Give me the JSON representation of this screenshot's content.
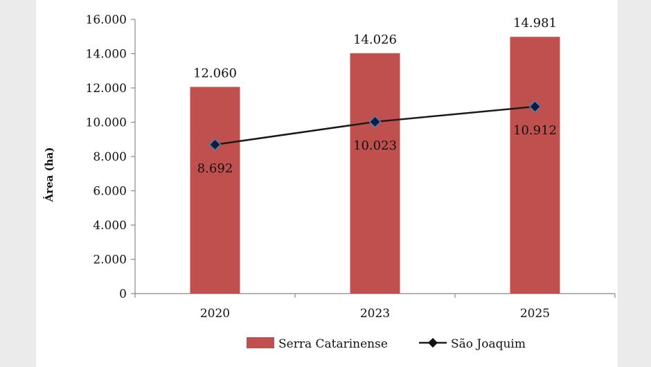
{
  "chart_data": {
    "type": "bar",
    "categories": [
      "2020",
      "2023",
      "2025"
    ],
    "xlabel": "",
    "ylabel": "Área (ha)",
    "ylim": [
      0,
      16000
    ],
    "yticks": [
      0,
      2000,
      4000,
      6000,
      8000,
      10000,
      12000,
      14000,
      16000
    ],
    "ytick_labels": [
      "0",
      "2.000",
      "4.000",
      "6.000",
      "8.000",
      "10.000",
      "12.000",
      "14.000",
      "16.000"
    ],
    "grid": false,
    "legend_position": "bottom",
    "series": [
      {
        "name": "Serra Catarinense",
        "type": "bar",
        "color": "#c0504d",
        "values": [
          12060,
          14026,
          14981
        ],
        "labels": [
          "12.060",
          "14.026",
          "14.981"
        ]
      },
      {
        "name": "São Joaquim",
        "type": "line",
        "color": "#1a1a1a",
        "marker": "diamond",
        "marker_color": "#0a1f3d",
        "values": [
          8692,
          10023,
          10912
        ],
        "labels": [
          "8.692",
          "10.023",
          "10.912"
        ]
      }
    ]
  }
}
